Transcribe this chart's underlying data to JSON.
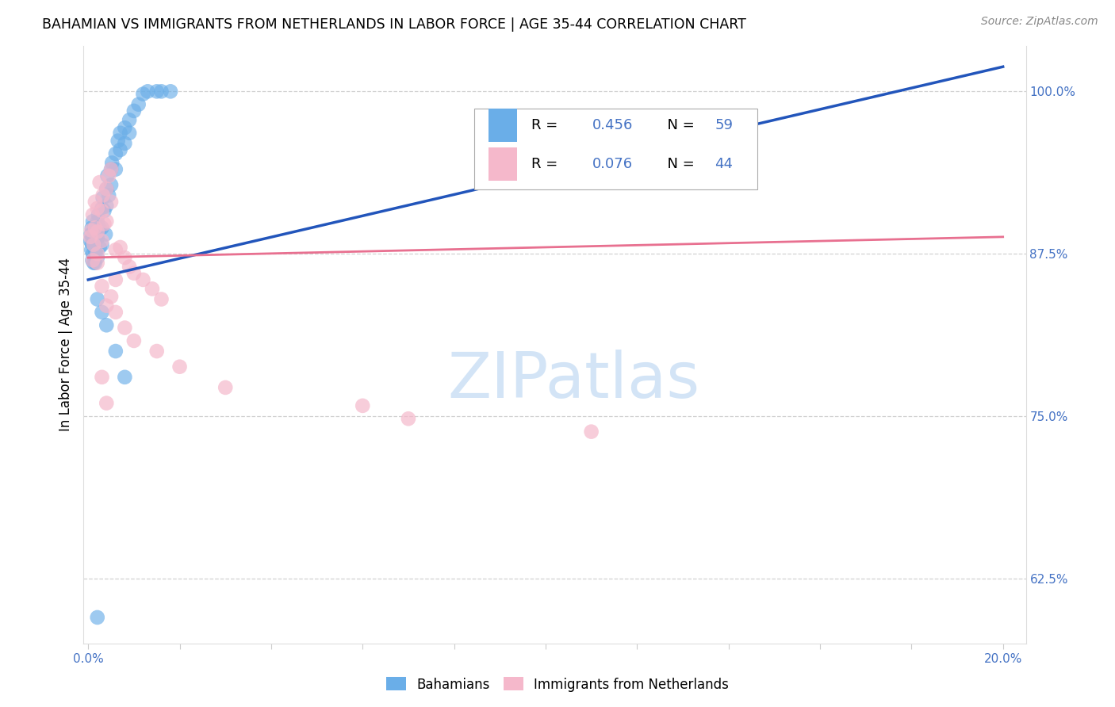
{
  "title": "BAHAMIAN VS IMMIGRANTS FROM NETHERLANDS IN LABOR FORCE | AGE 35-44 CORRELATION CHART",
  "source": "Source: ZipAtlas.com",
  "ylabel": "In Labor Force | Age 35-44",
  "xlim_min": -0.001,
  "xlim_max": 0.205,
  "ylim_min": 0.575,
  "ylim_max": 1.035,
  "xtick_positions": [
    0.0,
    0.02,
    0.04,
    0.06,
    0.08,
    0.1,
    0.12,
    0.14,
    0.16,
    0.18,
    0.2
  ],
  "xticklabels": [
    "0.0%",
    "",
    "",
    "",
    "",
    "",
    "",
    "",
    "",
    "",
    "20.0%"
  ],
  "yticks_right": [
    0.625,
    0.75,
    0.875,
    1.0
  ],
  "ytick_right_labels": [
    "62.5%",
    "75.0%",
    "87.5%",
    "100.0%"
  ],
  "blue_color": "#6aaee8",
  "pink_color": "#f5b8cb",
  "blue_line_color": "#2255bb",
  "pink_line_color": "#e87090",
  "tick_label_color": "#4472C4",
  "watermark_color": "#cce0f5",
  "blue_slope": 0.82,
  "blue_intercept": 0.855,
  "pink_slope": 0.08,
  "pink_intercept": 0.872,
  "blue_x": [
    0.0005,
    0.0006,
    0.0007,
    0.0008,
    0.0008,
    0.0009,
    0.001,
    0.001,
    0.001,
    0.0012,
    0.0013,
    0.0014,
    0.0015,
    0.0015,
    0.0016,
    0.0017,
    0.0018,
    0.002,
    0.002,
    0.002,
    0.0022,
    0.0025,
    0.0025,
    0.003,
    0.003,
    0.003,
    0.0032,
    0.0035,
    0.0038,
    0.004,
    0.004,
    0.0042,
    0.0045,
    0.005,
    0.005,
    0.0052,
    0.006,
    0.006,
    0.0065,
    0.007,
    0.007,
    0.008,
    0.008,
    0.009,
    0.009,
    0.01,
    0.011,
    0.012,
    0.013,
    0.015,
    0.016,
    0.018,
    0.002,
    0.003,
    0.004,
    0.006,
    0.008,
    0.002,
    0.12
  ],
  "blue_y": [
    0.885,
    0.89,
    0.878,
    0.883,
    0.895,
    0.87,
    0.875,
    0.888,
    0.9,
    0.868,
    0.893,
    0.882,
    0.878,
    0.868,
    0.876,
    0.888,
    0.895,
    0.9,
    0.887,
    0.872,
    0.905,
    0.895,
    0.88,
    0.91,
    0.895,
    0.882,
    0.918,
    0.908,
    0.89,
    0.925,
    0.912,
    0.935,
    0.92,
    0.94,
    0.928,
    0.945,
    0.952,
    0.94,
    0.962,
    0.968,
    0.955,
    0.972,
    0.96,
    0.978,
    0.968,
    0.985,
    0.99,
    0.998,
    1.0,
    1.0,
    1.0,
    1.0,
    0.84,
    0.83,
    0.82,
    0.8,
    0.78,
    0.595,
    0.98
  ],
  "pink_x": [
    0.0005,
    0.0007,
    0.001,
    0.001,
    0.0012,
    0.0015,
    0.0015,
    0.002,
    0.002,
    0.002,
    0.0025,
    0.003,
    0.003,
    0.0032,
    0.0035,
    0.004,
    0.004,
    0.0045,
    0.005,
    0.005,
    0.006,
    0.006,
    0.007,
    0.008,
    0.009,
    0.01,
    0.012,
    0.014,
    0.016,
    0.002,
    0.003,
    0.004,
    0.005,
    0.006,
    0.008,
    0.01,
    0.015,
    0.02,
    0.03,
    0.06,
    0.07,
    0.11,
    0.003,
    0.004
  ],
  "pink_y": [
    0.888,
    0.893,
    0.905,
    0.87,
    0.882,
    0.915,
    0.895,
    0.91,
    0.892,
    0.875,
    0.93,
    0.908,
    0.885,
    0.92,
    0.898,
    0.925,
    0.9,
    0.935,
    0.94,
    0.915,
    0.878,
    0.855,
    0.88,
    0.872,
    0.865,
    0.86,
    0.855,
    0.848,
    0.84,
    0.868,
    0.85,
    0.835,
    0.842,
    0.83,
    0.818,
    0.808,
    0.8,
    0.788,
    0.772,
    0.758,
    0.748,
    0.738,
    0.78,
    0.76
  ]
}
